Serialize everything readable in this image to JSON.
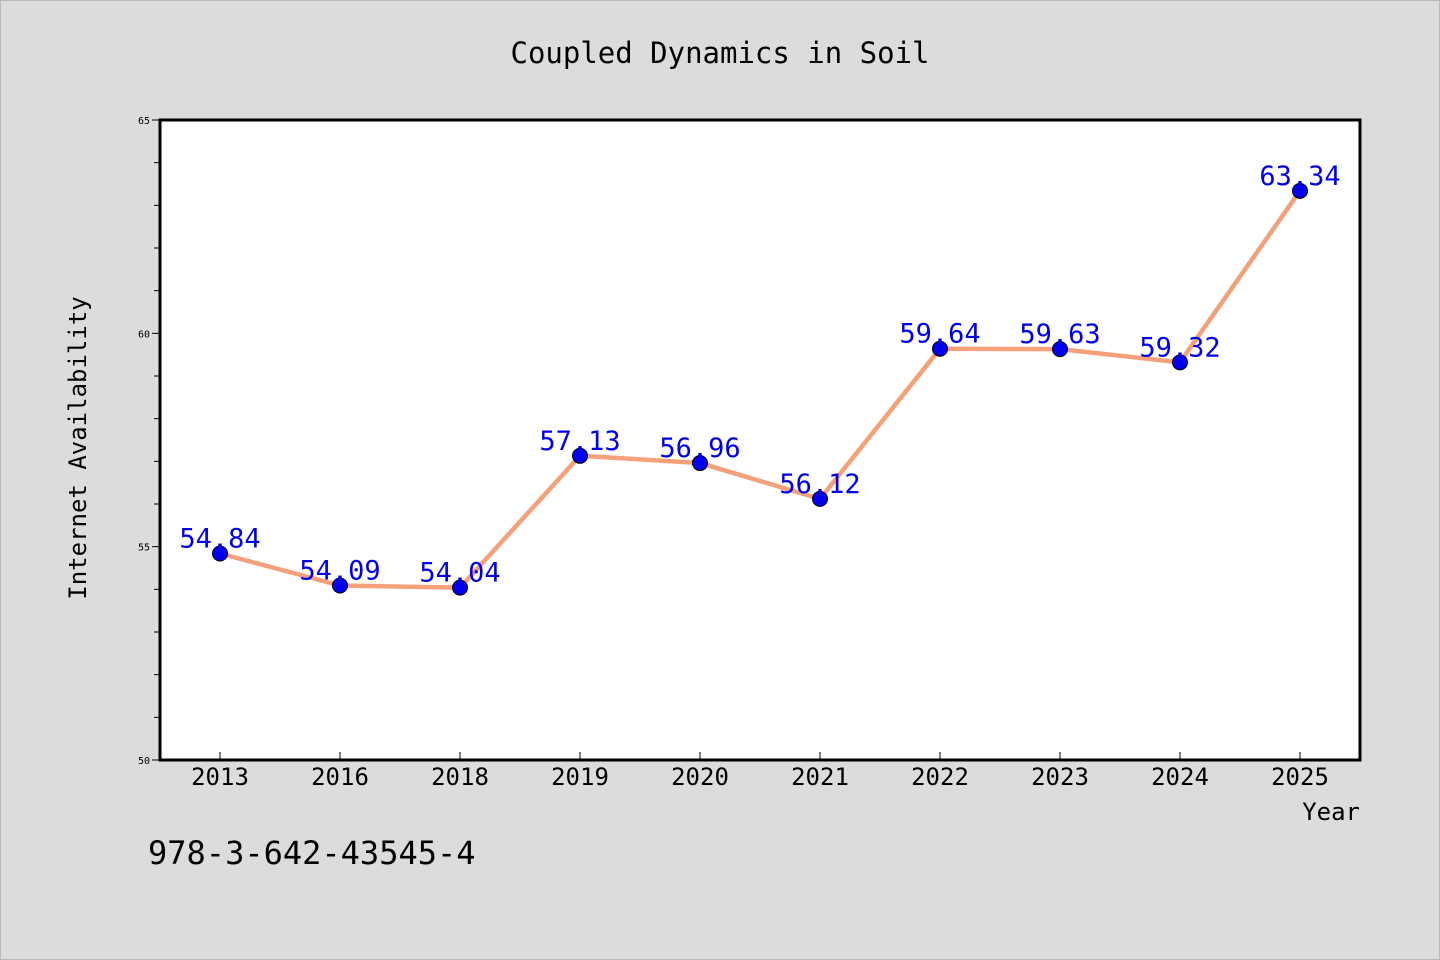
{
  "chart_data": {
    "type": "line",
    "title": "Coupled Dynamics in Soil",
    "xlabel": "Year",
    "ylabel": "Internet Availability",
    "categories": [
      "2013",
      "2016",
      "2018",
      "2019",
      "2020",
      "2021",
      "2022",
      "2023",
      "2024",
      "2025"
    ],
    "series": [
      {
        "values": [
          54.84,
          54.09,
          54.04,
          57.13,
          56.96,
          56.12,
          59.64,
          59.63,
          59.32,
          63.34
        ],
        "labels": [
          "54.84",
          "54.09",
          "54.04",
          "57.13",
          "56.96",
          "56.12",
          "59.64",
          "59.63",
          "59.32",
          "63.34"
        ],
        "line_color": "#f4a07a",
        "marker_color": "#0000ee"
      }
    ],
    "ylim": [
      50,
      65
    ],
    "yticks": [
      "50",
      "55",
      "60",
      "65"
    ],
    "grid": false,
    "legend": "none"
  },
  "annotation": "978-3-642-43545-4",
  "colors": {
    "background": "#dcdcdc",
    "plot_background": "#ffffff",
    "label_color": "#0000ee",
    "text": "#000000"
  }
}
